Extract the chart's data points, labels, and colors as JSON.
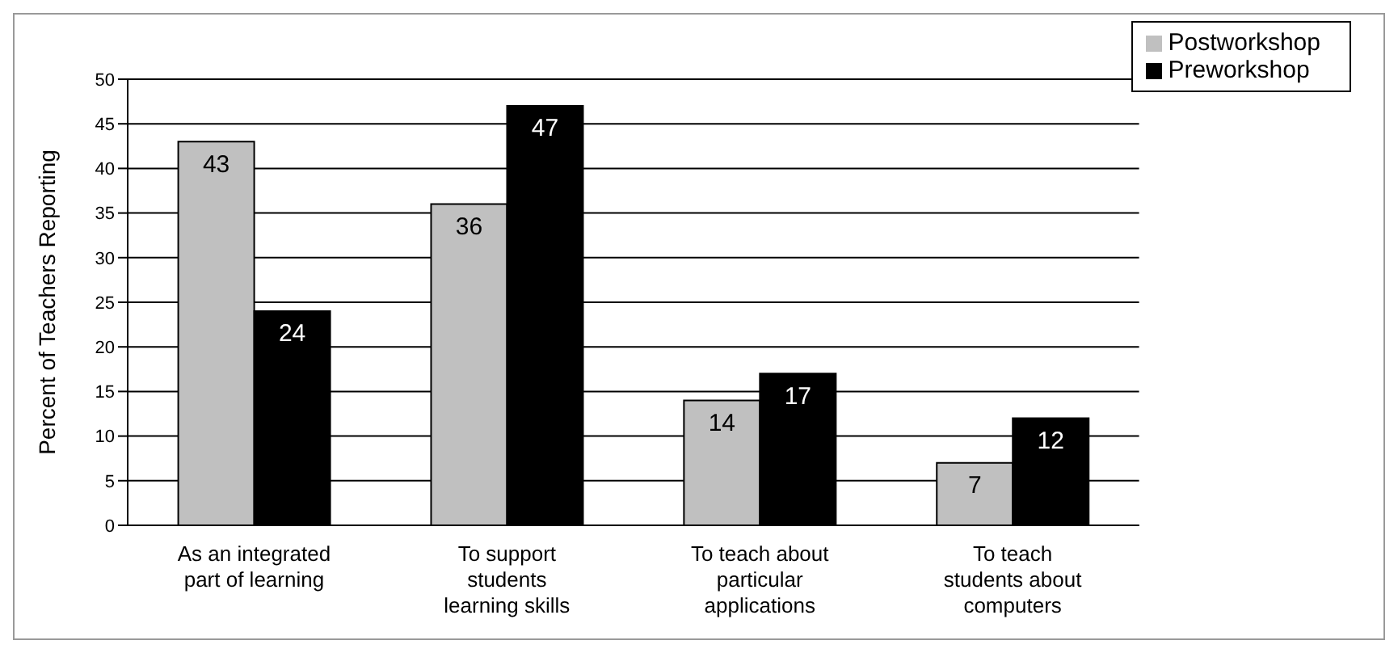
{
  "chart_data": {
    "type": "bar",
    "ylabel": "Percent of Teachers Reporting",
    "categories": [
      "As an integrated part of learning",
      "To support students learning skills",
      "To teach about particular applications",
      "To teach students about computers"
    ],
    "series": [
      {
        "name": "Postworkshop",
        "color": "#c0c0c0",
        "values": [
          43,
          36,
          14,
          7
        ]
      },
      {
        "name": "Preworkshop",
        "color": "#000000",
        "values": [
          24,
          47,
          17,
          12
        ]
      }
    ],
    "ylim": [
      0,
      50
    ],
    "yticks": [
      0,
      5,
      10,
      15,
      20,
      25,
      30,
      35,
      40,
      45,
      50
    ],
    "grid": "y",
    "legend": "top right",
    "data_labels": true
  }
}
